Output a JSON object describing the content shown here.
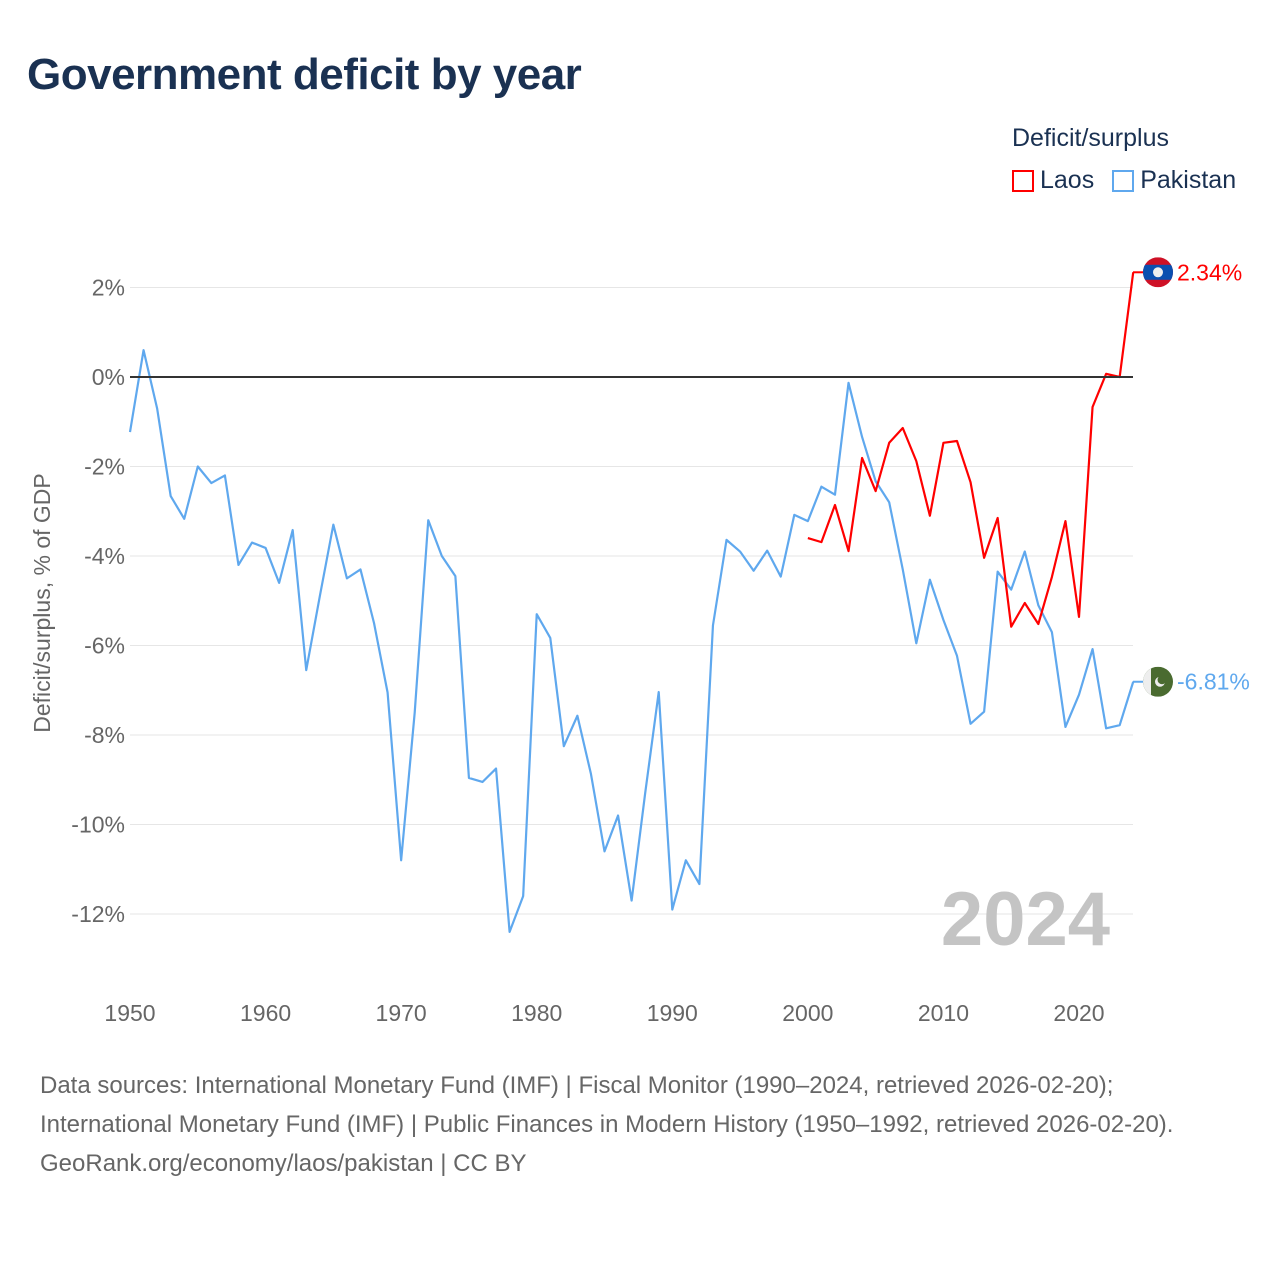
{
  "title": "Government deficit by year",
  "legend": {
    "title": "Deficit/surplus",
    "items": [
      {
        "name": "Laos",
        "color": "#ff0000"
      },
      {
        "name": "Pakistan",
        "color": "#5fa8ee"
      }
    ]
  },
  "watermark_year": "2024",
  "sources": {
    "line1": "Data sources: International Monetary Fund (IMF) | Fiscal Monitor (1990–2024, retrieved 2026-02-20); International Monetary Fund (IMF) | Public Finances in Modern History (1950–1992, retrieved 2026-02-20).",
    "line2": "GeoRank.org/economy/laos/pakistan | CC BY"
  },
  "chart_data": {
    "type": "line",
    "title": "Government deficit by year",
    "xlabel": "",
    "ylabel": "Deficit/surplus, % of GDP",
    "xlim": [
      1950,
      2024
    ],
    "ylim": [
      -12.5,
      2.5
    ],
    "xticks": [
      "1950",
      "1960",
      "1970",
      "1980",
      "1990",
      "2000",
      "2010",
      "2020"
    ],
    "yticks": [
      {
        "v": 2,
        "label": "2%"
      },
      {
        "v": 0,
        "label": "0%"
      },
      {
        "v": -2,
        "label": "-2%"
      },
      {
        "v": -4,
        "label": "-4%"
      },
      {
        "v": -6,
        "label": "-6%"
      },
      {
        "v": -8,
        "label": "-8%"
      },
      {
        "v": -10,
        "label": "-10%"
      },
      {
        "v": -12,
        "label": "-12%"
      }
    ],
    "legend_position": "top-right",
    "series": [
      {
        "name": "Laos",
        "color": "#ff0000",
        "end_label": "2.34%",
        "start_year": 2000,
        "values": [
          -3.6,
          -3.69,
          -2.86,
          -3.89,
          -1.81,
          -2.55,
          -1.47,
          -1.14,
          -1.88,
          -3.1,
          -1.47,
          -1.43,
          -2.35,
          -4.04,
          -3.15,
          -5.58,
          -5.05,
          -5.52,
          -4.47,
          -3.22,
          -5.36,
          -0.67,
          0.07,
          0.0,
          2.34
        ]
      },
      {
        "name": "Pakistan",
        "color": "#5fa8ee",
        "end_label": "-6.81%",
        "start_year": 1950,
        "values": [
          -1.23,
          0.6,
          -0.7,
          -2.66,
          -3.17,
          -2.0,
          -2.37,
          -2.2,
          -4.2,
          -3.7,
          -3.82,
          -4.6,
          -3.42,
          -6.55,
          -4.9,
          -3.3,
          -4.5,
          -4.3,
          -5.5,
          -7.05,
          -10.8,
          -7.5,
          -3.2,
          -4.0,
          -4.45,
          -8.96,
          -9.05,
          -8.75,
          -12.4,
          -11.6,
          -5.3,
          -5.83,
          -8.25,
          -7.57,
          -8.87,
          -10.6,
          -9.8,
          -11.7,
          -9.3,
          -7.04,
          -11.9,
          -10.8,
          -11.33,
          -5.55,
          -3.64,
          -3.9,
          -4.33,
          -3.88,
          -4.46,
          -3.08,
          -3.22,
          -2.45,
          -2.63,
          -0.13,
          -1.34,
          -2.33,
          -2.8,
          -4.3,
          -5.95,
          -4.53,
          -5.43,
          -6.23,
          -7.75,
          -7.48,
          -4.35,
          -4.75,
          -3.9,
          -5.1,
          -5.7,
          -7.82,
          -7.1,
          -6.08,
          -7.85,
          -7.78,
          -6.81
        ]
      }
    ]
  }
}
